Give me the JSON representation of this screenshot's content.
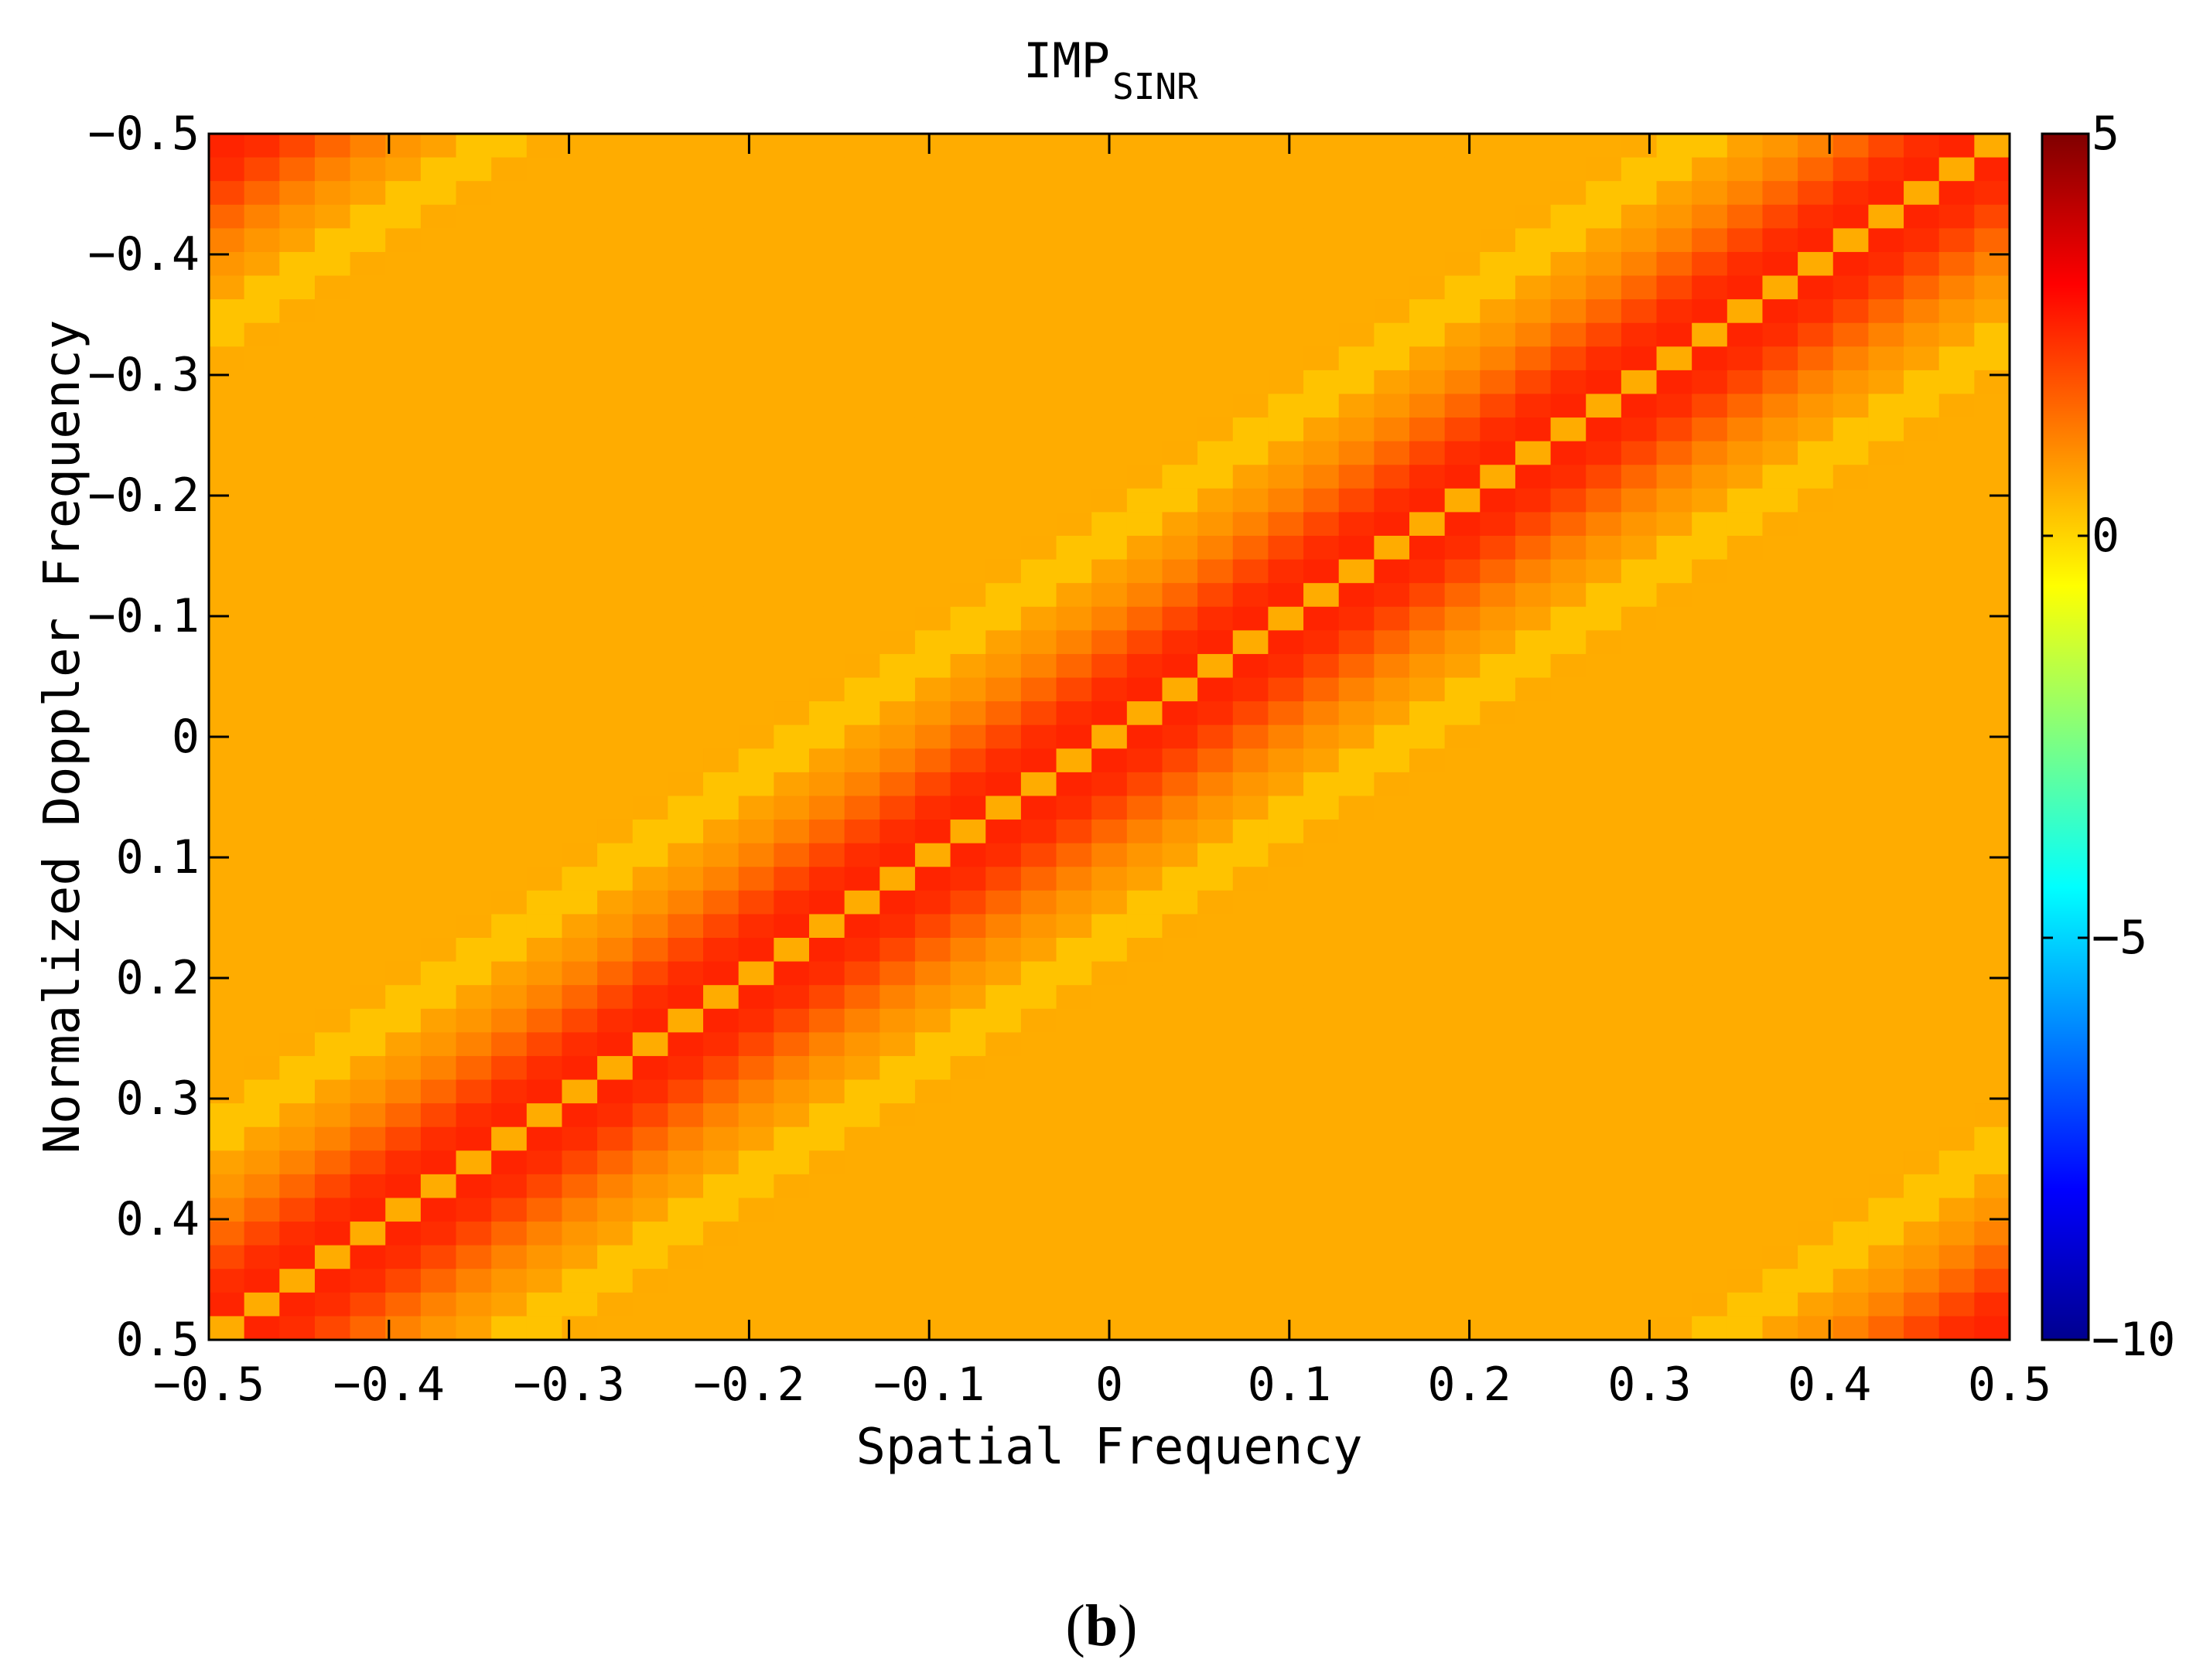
{
  "chart_data": {
    "type": "heatmap",
    "title": "IMP",
    "title_subscript": "SINR",
    "xlabel": "Spatial Frequency",
    "ylabel": "Normalized Doppler Frequency",
    "xlim": [
      -0.5,
      0.5
    ],
    "ylim": [
      -0.5,
      0.5
    ],
    "y_direction": "reversed",
    "xticks": [
      -0.5,
      -0.4,
      -0.3,
      -0.2,
      -0.1,
      0,
      0.1,
      0.2,
      0.3,
      0.4,
      0.5
    ],
    "yticks": [
      -0.5,
      -0.4,
      -0.3,
      -0.2,
      -0.1,
      0,
      0.1,
      0.2,
      0.3,
      0.4,
      0.5
    ],
    "xtick_labels": [
      "−0.5",
      "−0.4",
      "−0.3",
      "−0.2",
      "−0.1",
      "0",
      "0.1",
      "0.2",
      "0.3",
      "0.4",
      "0.5"
    ],
    "ytick_labels": [
      "−0.5",
      "−0.4",
      "−0.3",
      "−0.2",
      "−0.1",
      "0",
      "0.1",
      "0.2",
      "0.3",
      "0.4",
      "0.5"
    ],
    "colorbar": {
      "range": [
        -10,
        5
      ],
      "ticks": [
        5,
        0,
        -5,
        -10
      ],
      "tick_labels": [
        "5",
        "0",
        "−5",
        "−10"
      ],
      "colormap": "jet"
    },
    "grid_size": [
      51,
      51
    ],
    "field": {
      "baseline_value": 0.6,
      "ridge": "y = -x (wrapping periodically at ±0.5)",
      "ridge_peak_value": 2.6,
      "ridge_center_notch_value": 0.6,
      "side_band_value": 0.25
    },
    "grid": false
  },
  "caption": {
    "open": "(",
    "label": "b",
    "close": ")"
  }
}
